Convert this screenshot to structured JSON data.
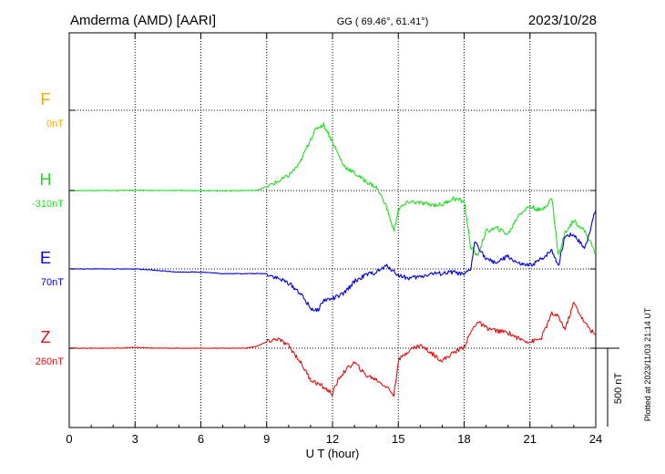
{
  "header": {
    "station": "Amderma (AMD)  [AARI]",
    "coords": "GG ( 69.46°,  61.41°)",
    "date": "2023/10/28"
  },
  "side_note": "Plotted at 2023/11/03 21:14 UT",
  "scale_label": "500 nT",
  "colors": {
    "F": "#f2a900",
    "H": "#22dd22",
    "E": "#0000dd",
    "Z": "#dd1111"
  },
  "chart_data": {
    "type": "line",
    "xlabel": "U T (hour)",
    "xlim": [
      0,
      24
    ],
    "xticks": [
      "0",
      "3",
      "6",
      "9",
      "12",
      "15",
      "18",
      "21",
      "24"
    ],
    "scale_nT": 500,
    "series": [
      {
        "name": "F",
        "offset": "0nT",
        "x": [],
        "y": []
      },
      {
        "name": "H",
        "offset": "-310nT",
        "x": [
          0,
          1,
          2,
          3,
          4,
          5,
          6,
          7,
          8,
          8.5,
          9,
          9.5,
          10,
          10.5,
          11,
          11.3,
          11.6,
          12,
          12.5,
          13,
          13.5,
          14,
          14.4,
          14.8,
          15,
          15.5,
          16,
          16.5,
          17,
          17.5,
          18,
          18.3,
          18.6,
          19,
          19.5,
          20,
          20.5,
          21,
          21.5,
          22,
          22.3,
          22.6,
          23,
          23.5,
          24
        ],
        "y": [
          0,
          0,
          0,
          2,
          0,
          0,
          0,
          -2,
          0,
          0,
          25,
          55,
          95,
          170,
          330,
          400,
          420,
          310,
          160,
          110,
          60,
          20,
          -80,
          -260,
          -120,
          -70,
          -80,
          -90,
          -90,
          -50,
          -70,
          -360,
          -420,
          -260,
          -240,
          -280,
          -150,
          -100,
          -130,
          -50,
          -420,
          -270,
          -190,
          -260,
          -400
        ]
      },
      {
        "name": "E",
        "offset": "70nT",
        "x": [
          0,
          1,
          2,
          3,
          4,
          5,
          6,
          7,
          8,
          9,
          9.5,
          10,
          10.5,
          11,
          11.3,
          11.6,
          12,
          12.5,
          13,
          13.5,
          14,
          14.5,
          15,
          15.5,
          16,
          16.5,
          17,
          17.5,
          18,
          18.3,
          18.5,
          19,
          19.5,
          20,
          20.5,
          21,
          21.5,
          22,
          22.3,
          22.6,
          23,
          23.5,
          24
        ],
        "y": [
          0,
          0,
          0,
          0,
          -10,
          -20,
          -20,
          -30,
          -30,
          -30,
          -60,
          -90,
          -150,
          -250,
          -270,
          -200,
          -190,
          -160,
          -80,
          -40,
          -20,
          20,
          -40,
          -60,
          -50,
          -30,
          -30,
          -20,
          -40,
          0,
          180,
          60,
          40,
          80,
          30,
          20,
          60,
          120,
          20,
          210,
          220,
          130,
          380
        ]
      },
      {
        "name": "Z",
        "offset": "260nT",
        "x": [
          0,
          1,
          2,
          3,
          4,
          5,
          6,
          7,
          8,
          8.5,
          9,
          9.5,
          10,
          10.5,
          11,
          11.5,
          12,
          12.3,
          12.6,
          13,
          13.5,
          14,
          14.5,
          14.8,
          15,
          15.5,
          16,
          16.5,
          17,
          17.5,
          18,
          18.3,
          18.6,
          19,
          19.5,
          20,
          20.5,
          21,
          21.5,
          22,
          22.3,
          22.6,
          23,
          23.5,
          24
        ],
        "y": [
          0,
          0,
          0,
          5,
          0,
          0,
          0,
          0,
          0,
          10,
          40,
          60,
          15,
          -80,
          -200,
          -240,
          -290,
          -190,
          -140,
          -90,
          -170,
          -200,
          -250,
          -300,
          -80,
          -10,
          20,
          -30,
          -80,
          -30,
          10,
          100,
          170,
          130,
          110,
          100,
          60,
          40,
          60,
          220,
          200,
          120,
          290,
          160,
          80
        ]
      }
    ]
  }
}
